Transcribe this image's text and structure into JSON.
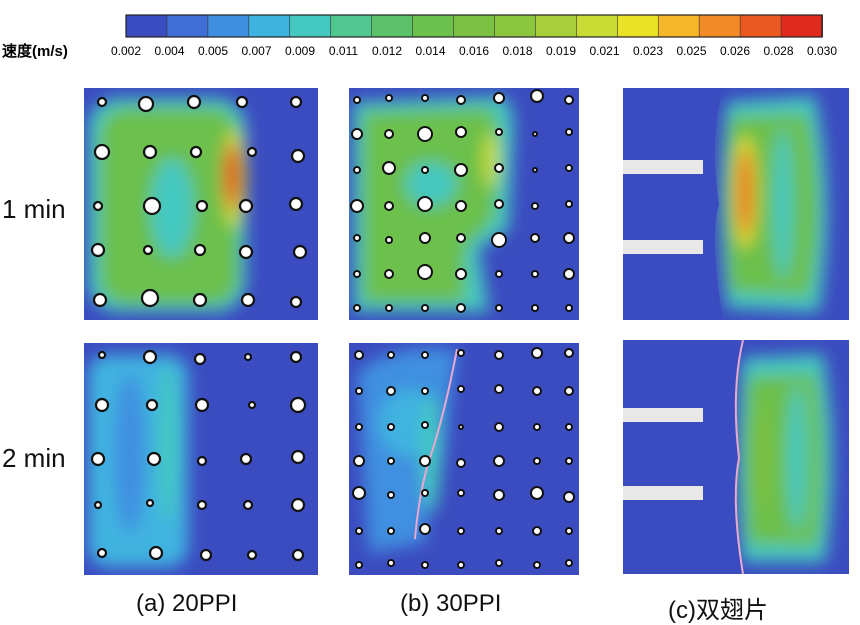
{
  "colorbar": {
    "label": "速度(m/s)",
    "ticks": [
      "0.002",
      "0.004",
      "0.005",
      "0.007",
      "0.009",
      "0.011",
      "0.012",
      "0.014",
      "0.016",
      "0.018",
      "0.019",
      "0.021",
      "0.023",
      "0.025",
      "0.026",
      "0.028",
      "0.030"
    ],
    "colors": [
      "#3b4cc0",
      "#3f6fd6",
      "#3f8fe0",
      "#3fb3e0",
      "#45c8c0",
      "#4fc78e",
      "#5bc26a",
      "#6cc04c",
      "#7ac043",
      "#8cc63f",
      "#a7cf3a",
      "#c9dc35",
      "#e9e227",
      "#f5b62a",
      "#f28a26",
      "#ea5a20",
      "#e02a1d"
    ]
  },
  "rows": [
    {
      "label": "1 min"
    },
    {
      "label": "2 min"
    }
  ],
  "captions": [
    {
      "text": "(a) 20PPI"
    },
    {
      "text": "(b) 30PPI"
    },
    {
      "text": "(c)双翅片"
    }
  ]
}
